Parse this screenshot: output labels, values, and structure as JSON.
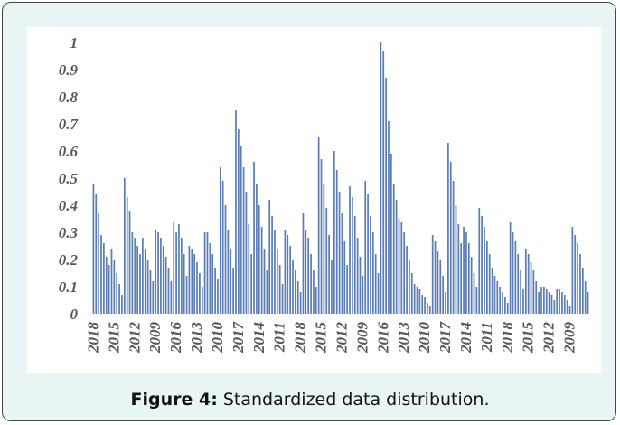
{
  "chart_data": {
    "type": "bar",
    "color": "#5a7db3",
    "categories": [
      "2018",
      null,
      null,
      null,
      null,
      null,
      null,
      null,
      "2015",
      null,
      null,
      null,
      null,
      null,
      null,
      null,
      "2012",
      null,
      null,
      null,
      null,
      null,
      null,
      null,
      "2009",
      null,
      null,
      null,
      null,
      null,
      null,
      null,
      "2016",
      null,
      null,
      null,
      null,
      null,
      null,
      null,
      "2013",
      null,
      null,
      null,
      null,
      null,
      null,
      null,
      "2010",
      null,
      null,
      null,
      null,
      null,
      null,
      null,
      "2017",
      null,
      null,
      null,
      null,
      null,
      null,
      null,
      "2014",
      null,
      null,
      null,
      null,
      null,
      null,
      null,
      "2011",
      null,
      null,
      null,
      null,
      null,
      null,
      null,
      "2018",
      null,
      null,
      null,
      null,
      null,
      null,
      null,
      "2015",
      null,
      null,
      null,
      null,
      null,
      null,
      null,
      "2012",
      null,
      null,
      null,
      null,
      null,
      null,
      null,
      "2009",
      null,
      null,
      null,
      null,
      null,
      null,
      null,
      "2016",
      null,
      null,
      null,
      null,
      null,
      null,
      null,
      "2013",
      null,
      null,
      null,
      null,
      null,
      null,
      null,
      "2010",
      null,
      null,
      null,
      null,
      null,
      null,
      null,
      "2017",
      null,
      null,
      null,
      null,
      null,
      null,
      null,
      "2014",
      null,
      null,
      null,
      null,
      null,
      null,
      null,
      "2011",
      null,
      null,
      null,
      null,
      null,
      null,
      null,
      "2018",
      null,
      null,
      null,
      null,
      null,
      null,
      null,
      "2015",
      null,
      null,
      null,
      null,
      null,
      null,
      null,
      "2012",
      null,
      null,
      null,
      null,
      null,
      null,
      null,
      "2009",
      null,
      null,
      null,
      null,
      null,
      null,
      null
    ],
    "values": [
      0.48,
      0.44,
      0.37,
      0.29,
      0.26,
      0.21,
      0.18,
      0.24,
      0.2,
      0.15,
      0.11,
      0.07,
      0.5,
      0.43,
      0.38,
      0.3,
      0.28,
      0.25,
      0.22,
      0.28,
      0.24,
      0.2,
      0.16,
      0.12,
      0.31,
      0.3,
      0.28,
      0.25,
      0.21,
      0.17,
      0.12,
      0.34,
      0.3,
      0.33,
      0.28,
      0.22,
      0.14,
      0.25,
      0.24,
      0.22,
      0.19,
      0.15,
      0.1,
      0.3,
      0.3,
      0.26,
      0.22,
      0.17,
      0.13,
      0.54,
      0.49,
      0.4,
      0.31,
      0.24,
      0.17,
      0.75,
      0.68,
      0.62,
      0.54,
      0.45,
      0.33,
      0.22,
      0.56,
      0.48,
      0.4,
      0.32,
      0.24,
      0.16,
      0.42,
      0.36,
      0.31,
      0.24,
      0.18,
      0.11,
      0.31,
      0.29,
      0.25,
      0.2,
      0.16,
      0.12,
      0.08,
      0.37,
      0.31,
      0.28,
      0.22,
      0.16,
      0.1,
      0.65,
      0.57,
      0.48,
      0.39,
      0.29,
      0.2,
      0.6,
      0.53,
      0.45,
      0.37,
      0.27,
      0.18,
      0.47,
      0.43,
      0.36,
      0.28,
      0.21,
      0.14,
      0.49,
      0.44,
      0.36,
      0.3,
      0.22,
      0.15,
      1,
      0.97,
      0.87,
      0.71,
      0.59,
      0.48,
      0.42,
      0.35,
      0.34,
      0.3,
      0.25,
      0.2,
      0.15,
      0.11,
      0.1,
      0.09,
      0.07,
      0.06,
      0.04,
      0.03,
      0.29,
      0.27,
      0.23,
      0.2,
      0.14,
      0.08,
      0.63,
      0.56,
      0.49,
      0.4,
      0.33,
      0.26,
      0.32,
      0.3,
      0.26,
      0.21,
      0.15,
      0.1,
      0.39,
      0.36,
      0.32,
      0.27,
      0.22,
      0.17,
      0.14,
      0.12,
      0.1,
      0.08,
      0.06,
      0.04,
      0.34,
      0.3,
      0.27,
      0.22,
      0.16,
      0.09,
      0.24,
      0.22,
      0.19,
      0.16,
      0.12,
      0.08,
      0.1,
      0.1,
      0.09,
      0.08,
      0.07,
      0.05,
      0.09,
      0.09,
      0.08,
      0.07,
      0.05,
      0.03,
      0.32,
      0.29,
      0.26,
      0.22,
      0.17,
      0.12,
      0.08
    ],
    "ylim": [
      0,
      1
    ],
    "yticks": [
      0,
      0.1,
      0.2,
      0.3,
      0.4,
      0.5,
      0.6,
      0.7,
      0.8,
      0.9,
      1
    ],
    "grid": false
  },
  "caption": {
    "label": "Figure 4:",
    "text": "Standardized data distribution."
  }
}
